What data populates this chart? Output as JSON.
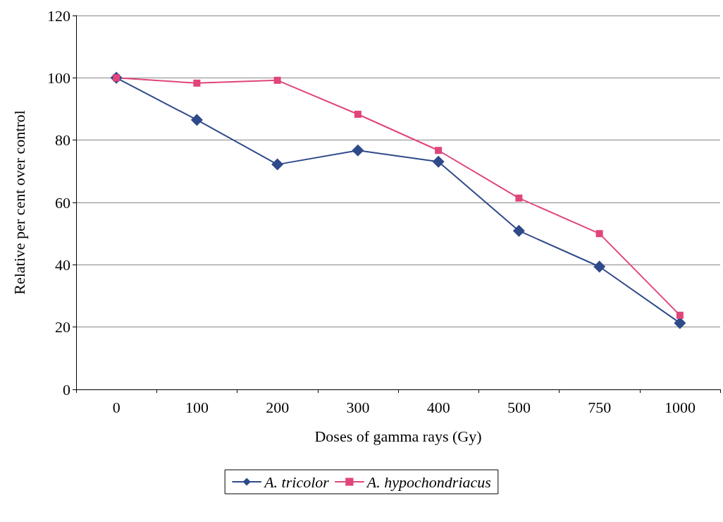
{
  "chart_data": {
    "type": "line",
    "xlabel": "Doses of gamma rays (Gy)",
    "ylabel": "Relative per cent over control",
    "categories": [
      "0",
      "100",
      "200",
      "300",
      "400",
      "500",
      "750",
      "1000"
    ],
    "series": [
      {
        "name": "A. tricolor",
        "color": "#2e4a8a",
        "marker": "diamond",
        "values": [
          100,
          86.5,
          72.2,
          76.7,
          73.1,
          50.9,
          39.4,
          21.3
        ]
      },
      {
        "name": "A. hypochondriacus",
        "color": "#e0457b",
        "marker": "square",
        "values": [
          100,
          98.3,
          99.2,
          88.3,
          76.7,
          61.4,
          50.0,
          23.8
        ]
      }
    ],
    "ylim": [
      0,
      120
    ],
    "yticks": [
      0,
      20,
      40,
      60,
      80,
      100,
      120
    ],
    "grid": "y",
    "legend": "bottom",
    "line_style": "solid"
  }
}
